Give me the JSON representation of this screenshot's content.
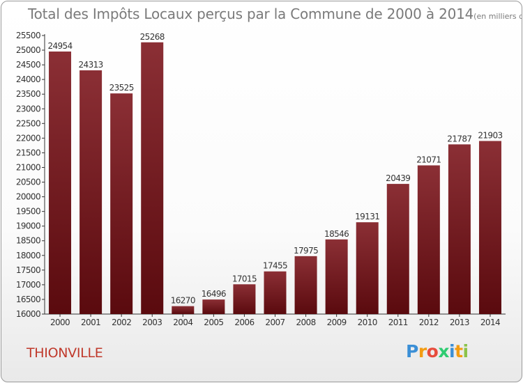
{
  "chart_data": {
    "type": "bar",
    "title": "Total des Impôts Locaux perçus par la Commune de 2000 à 2014",
    "unit_note": "(en milliers d'€)",
    "categories": [
      "2000",
      "2001",
      "2002",
      "2003",
      "2004",
      "2005",
      "2006",
      "2007",
      "2008",
      "2009",
      "2010",
      "2011",
      "2012",
      "2013",
      "2014"
    ],
    "values": [
      24954,
      24313,
      23525,
      25268,
      16270,
      16496,
      17015,
      17455,
      17975,
      18546,
      19131,
      20439,
      21071,
      21787,
      21903
    ],
    "ylim": [
      16000,
      25500
    ],
    "yticks": [
      16000,
      16500,
      17000,
      17500,
      18000,
      18500,
      19000,
      19500,
      20000,
      20500,
      21000,
      21500,
      22000,
      22500,
      23000,
      23500,
      24000,
      24500,
      25000,
      25500
    ],
    "xlabel": "",
    "ylabel": "",
    "grid": false,
    "bar_color_top": "#8b2f35",
    "bar_color_bottom": "#5a0a0e"
  },
  "footer": {
    "commune": "THIONVILLE",
    "logo_letters": [
      "P",
      "r",
      "o",
      "x",
      "i",
      "t",
      "i"
    ],
    "logo_colors": [
      "#3b8fd6",
      "#f39c12",
      "#e74c3c",
      "#2ecc71",
      "#3b8fd6",
      "#f39c12",
      "#8bc34a"
    ]
  }
}
